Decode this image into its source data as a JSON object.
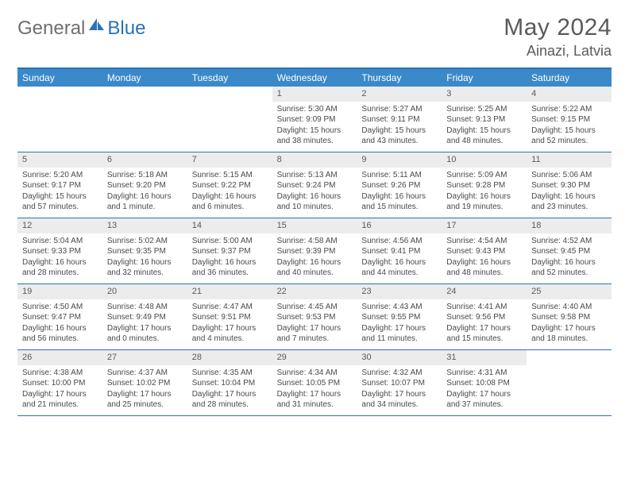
{
  "brand": {
    "part1": "General",
    "part2": "Blue"
  },
  "title": {
    "monthYear": "May 2024",
    "location": "Ainazi, Latvia"
  },
  "colors": {
    "headerBar": "#3b89c9",
    "rule": "#2a71b8",
    "dayBg": "#ececec",
    "text": "#4a4a4a"
  },
  "dayNames": [
    "Sunday",
    "Monday",
    "Tuesday",
    "Wednesday",
    "Thursday",
    "Friday",
    "Saturday"
  ],
  "weeks": [
    [
      {
        "n": "",
        "sr": "",
        "ss": "",
        "dl": ""
      },
      {
        "n": "",
        "sr": "",
        "ss": "",
        "dl": ""
      },
      {
        "n": "",
        "sr": "",
        "ss": "",
        "dl": ""
      },
      {
        "n": "1",
        "sr": "Sunrise: 5:30 AM",
        "ss": "Sunset: 9:09 PM",
        "dl": "Daylight: 15 hours and 38 minutes."
      },
      {
        "n": "2",
        "sr": "Sunrise: 5:27 AM",
        "ss": "Sunset: 9:11 PM",
        "dl": "Daylight: 15 hours and 43 minutes."
      },
      {
        "n": "3",
        "sr": "Sunrise: 5:25 AM",
        "ss": "Sunset: 9:13 PM",
        "dl": "Daylight: 15 hours and 48 minutes."
      },
      {
        "n": "4",
        "sr": "Sunrise: 5:22 AM",
        "ss": "Sunset: 9:15 PM",
        "dl": "Daylight: 15 hours and 52 minutes."
      }
    ],
    [
      {
        "n": "5",
        "sr": "Sunrise: 5:20 AM",
        "ss": "Sunset: 9:17 PM",
        "dl": "Daylight: 15 hours and 57 minutes."
      },
      {
        "n": "6",
        "sr": "Sunrise: 5:18 AM",
        "ss": "Sunset: 9:20 PM",
        "dl": "Daylight: 16 hours and 1 minute."
      },
      {
        "n": "7",
        "sr": "Sunrise: 5:15 AM",
        "ss": "Sunset: 9:22 PM",
        "dl": "Daylight: 16 hours and 6 minutes."
      },
      {
        "n": "8",
        "sr": "Sunrise: 5:13 AM",
        "ss": "Sunset: 9:24 PM",
        "dl": "Daylight: 16 hours and 10 minutes."
      },
      {
        "n": "9",
        "sr": "Sunrise: 5:11 AM",
        "ss": "Sunset: 9:26 PM",
        "dl": "Daylight: 16 hours and 15 minutes."
      },
      {
        "n": "10",
        "sr": "Sunrise: 5:09 AM",
        "ss": "Sunset: 9:28 PM",
        "dl": "Daylight: 16 hours and 19 minutes."
      },
      {
        "n": "11",
        "sr": "Sunrise: 5:06 AM",
        "ss": "Sunset: 9:30 PM",
        "dl": "Daylight: 16 hours and 23 minutes."
      }
    ],
    [
      {
        "n": "12",
        "sr": "Sunrise: 5:04 AM",
        "ss": "Sunset: 9:33 PM",
        "dl": "Daylight: 16 hours and 28 minutes."
      },
      {
        "n": "13",
        "sr": "Sunrise: 5:02 AM",
        "ss": "Sunset: 9:35 PM",
        "dl": "Daylight: 16 hours and 32 minutes."
      },
      {
        "n": "14",
        "sr": "Sunrise: 5:00 AM",
        "ss": "Sunset: 9:37 PM",
        "dl": "Daylight: 16 hours and 36 minutes."
      },
      {
        "n": "15",
        "sr": "Sunrise: 4:58 AM",
        "ss": "Sunset: 9:39 PM",
        "dl": "Daylight: 16 hours and 40 minutes."
      },
      {
        "n": "16",
        "sr": "Sunrise: 4:56 AM",
        "ss": "Sunset: 9:41 PM",
        "dl": "Daylight: 16 hours and 44 minutes."
      },
      {
        "n": "17",
        "sr": "Sunrise: 4:54 AM",
        "ss": "Sunset: 9:43 PM",
        "dl": "Daylight: 16 hours and 48 minutes."
      },
      {
        "n": "18",
        "sr": "Sunrise: 4:52 AM",
        "ss": "Sunset: 9:45 PM",
        "dl": "Daylight: 16 hours and 52 minutes."
      }
    ],
    [
      {
        "n": "19",
        "sr": "Sunrise: 4:50 AM",
        "ss": "Sunset: 9:47 PM",
        "dl": "Daylight: 16 hours and 56 minutes."
      },
      {
        "n": "20",
        "sr": "Sunrise: 4:48 AM",
        "ss": "Sunset: 9:49 PM",
        "dl": "Daylight: 17 hours and 0 minutes."
      },
      {
        "n": "21",
        "sr": "Sunrise: 4:47 AM",
        "ss": "Sunset: 9:51 PM",
        "dl": "Daylight: 17 hours and 4 minutes."
      },
      {
        "n": "22",
        "sr": "Sunrise: 4:45 AM",
        "ss": "Sunset: 9:53 PM",
        "dl": "Daylight: 17 hours and 7 minutes."
      },
      {
        "n": "23",
        "sr": "Sunrise: 4:43 AM",
        "ss": "Sunset: 9:55 PM",
        "dl": "Daylight: 17 hours and 11 minutes."
      },
      {
        "n": "24",
        "sr": "Sunrise: 4:41 AM",
        "ss": "Sunset: 9:56 PM",
        "dl": "Daylight: 17 hours and 15 minutes."
      },
      {
        "n": "25",
        "sr": "Sunrise: 4:40 AM",
        "ss": "Sunset: 9:58 PM",
        "dl": "Daylight: 17 hours and 18 minutes."
      }
    ],
    [
      {
        "n": "26",
        "sr": "Sunrise: 4:38 AM",
        "ss": "Sunset: 10:00 PM",
        "dl": "Daylight: 17 hours and 21 minutes."
      },
      {
        "n": "27",
        "sr": "Sunrise: 4:37 AM",
        "ss": "Sunset: 10:02 PM",
        "dl": "Daylight: 17 hours and 25 minutes."
      },
      {
        "n": "28",
        "sr": "Sunrise: 4:35 AM",
        "ss": "Sunset: 10:04 PM",
        "dl": "Daylight: 17 hours and 28 minutes."
      },
      {
        "n": "29",
        "sr": "Sunrise: 4:34 AM",
        "ss": "Sunset: 10:05 PM",
        "dl": "Daylight: 17 hours and 31 minutes."
      },
      {
        "n": "30",
        "sr": "Sunrise: 4:32 AM",
        "ss": "Sunset: 10:07 PM",
        "dl": "Daylight: 17 hours and 34 minutes."
      },
      {
        "n": "31",
        "sr": "Sunrise: 4:31 AM",
        "ss": "Sunset: 10:08 PM",
        "dl": "Daylight: 17 hours and 37 minutes."
      },
      {
        "n": "",
        "sr": "",
        "ss": "",
        "dl": ""
      }
    ]
  ]
}
